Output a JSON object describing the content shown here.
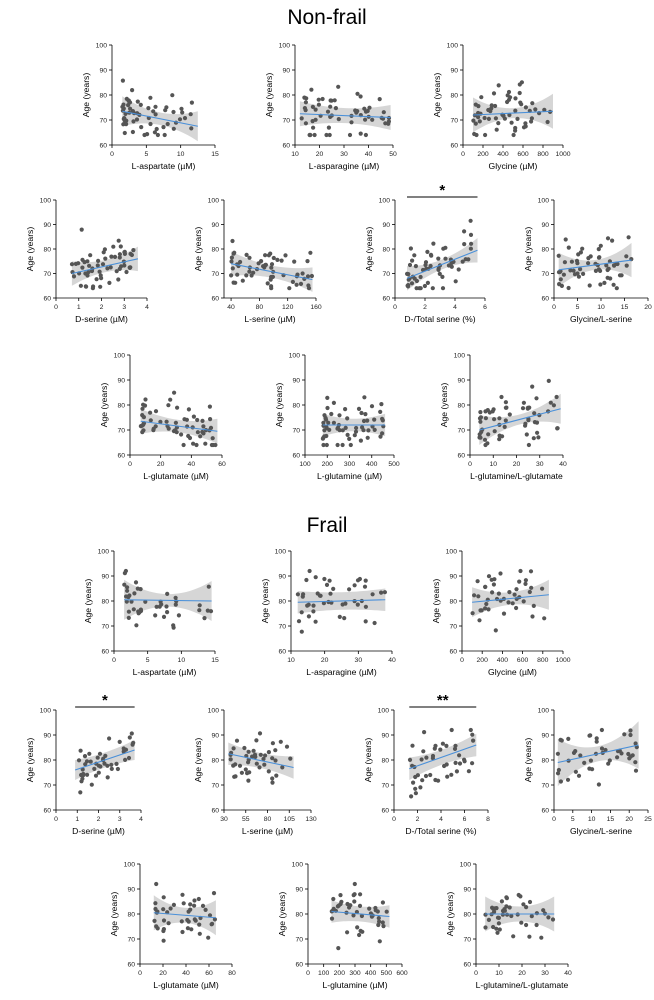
{
  "figure": {
    "groups": [
      {
        "id": "nonfrail",
        "title": "Non-frail"
      },
      {
        "id": "frail",
        "title": "Frail"
      }
    ],
    "y_label": "Age (years)"
  },
  "chart_data": [
    {
      "group": "nonfrail",
      "type": "scatter",
      "xlabel": "L-aspartate (µM)",
      "ylabel": "Age (years)",
      "xlim": [
        0,
        15
      ],
      "xticks": [
        0,
        5,
        10,
        15
      ],
      "ylim": [
        60,
        100
      ],
      "yticks": [
        60,
        70,
        80,
        90,
        100
      ],
      "x_range": [
        1.5,
        12.5
      ],
      "fit": {
        "y_start": 73.5,
        "y_end": 67.5
      },
      "ci_start": 2.5,
      "ci_end": 6,
      "significance": "",
      "points": 60
    },
    {
      "group": "nonfrail",
      "type": "scatter",
      "xlabel": "L-asparagine (µM)",
      "ylabel": "Age (years)",
      "xlim": [
        10,
        50
      ],
      "xticks": [
        10,
        20,
        30,
        40,
        50
      ],
      "ylim": [
        60,
        100
      ],
      "yticks": [
        60,
        70,
        80,
        90,
        100
      ],
      "x_range": [
        12,
        49
      ],
      "fit": {
        "y_start": 72.5,
        "y_end": 71
      },
      "ci_start": 3,
      "ci_end": 5,
      "significance": "",
      "points": 60
    },
    {
      "group": "nonfrail",
      "type": "scatter",
      "xlabel": "Glycine (µM)",
      "ylabel": "Age (years)",
      "xlim": [
        0,
        1000
      ],
      "xticks": [
        0,
        200,
        400,
        600,
        800,
        1000
      ],
      "ylim": [
        60,
        100
      ],
      "yticks": [
        60,
        70,
        80,
        90,
        100
      ],
      "x_range": [
        100,
        900
      ],
      "fit": {
        "y_start": 72,
        "y_end": 73.5
      },
      "ci_start": 2,
      "ci_end": 7,
      "significance": "",
      "points": 60
    },
    {
      "group": "nonfrail",
      "type": "scatter",
      "xlabel": "D-serine (µM)",
      "ylabel": "Age (years)",
      "xlim": [
        0,
        4
      ],
      "xticks": [
        0,
        1,
        2,
        3,
        4
      ],
      "ylim": [
        60,
        100
      ],
      "yticks": [
        60,
        70,
        80,
        90,
        100
      ],
      "x_range": [
        0.7,
        3.6
      ],
      "fit": {
        "y_start": 70,
        "y_end": 76
      },
      "ci_start": 2.5,
      "ci_end": 5,
      "significance": "",
      "points": 60
    },
    {
      "group": "nonfrail",
      "type": "scatter",
      "xlabel": "L-serine (µM)",
      "ylabel": "Age (years)",
      "xlim": [
        30,
        160
      ],
      "xticks": [
        40,
        80,
        120,
        160
      ],
      "ylim": [
        60,
        100
      ],
      "yticks": [
        60,
        70,
        80,
        90,
        100
      ],
      "x_range": [
        40,
        155
      ],
      "fit": {
        "y_start": 74,
        "y_end": 67.5
      },
      "ci_start": 2.5,
      "ci_end": 5,
      "significance": "",
      "points": 60
    },
    {
      "group": "nonfrail",
      "type": "scatter",
      "xlabel": "D-/Total serine (%)",
      "ylabel": "Age (years)",
      "xlim": [
        0,
        6
      ],
      "xticks": [
        0,
        2,
        4,
        6
      ],
      "ylim": [
        60,
        100
      ],
      "yticks": [
        60,
        70,
        80,
        90,
        100
      ],
      "x_range": [
        0.8,
        5.5
      ],
      "fit": {
        "y_start": 68,
        "y_end": 79.5
      },
      "ci_start": 2,
      "ci_end": 5,
      "significance": "*",
      "points": 60
    },
    {
      "group": "nonfrail",
      "type": "scatter",
      "xlabel": "Glycine/L-serine",
      "ylabel": "Age (years)",
      "xlim": [
        0,
        20
      ],
      "xticks": [
        0,
        5,
        10,
        15,
        20
      ],
      "ylim": [
        60,
        100
      ],
      "yticks": [
        60,
        70,
        80,
        90,
        100
      ],
      "x_range": [
        1,
        16.5
      ],
      "fit": {
        "y_start": 71.5,
        "y_end": 75.5
      },
      "ci_start": 2,
      "ci_end": 7,
      "significance": "",
      "points": 60
    },
    {
      "group": "nonfrail",
      "type": "scatter",
      "xlabel": "L-glutamate (µM)",
      "ylabel": "Age (years)",
      "xlim": [
        0,
        60
      ],
      "xticks": [
        0,
        20,
        40,
        60
      ],
      "ylim": [
        60,
        100
      ],
      "yticks": [
        60,
        70,
        80,
        90,
        100
      ],
      "x_range": [
        7,
        57
      ],
      "fit": {
        "y_start": 73.5,
        "y_end": 69.5
      },
      "ci_start": 2.5,
      "ci_end": 5,
      "significance": "",
      "points": 60
    },
    {
      "group": "nonfrail",
      "type": "scatter",
      "xlabel": "L-glutamine (µM)",
      "ylabel": "Age (years)",
      "xlim": [
        100,
        500
      ],
      "xticks": [
        100,
        200,
        300,
        400,
        500
      ],
      "ylim": [
        60,
        100
      ],
      "yticks": [
        60,
        70,
        80,
        90,
        100
      ],
      "x_range": [
        180,
        460
      ],
      "fit": {
        "y_start": 72,
        "y_end": 72
      },
      "ci_start": 2.5,
      "ci_end": 4.5,
      "significance": "",
      "points": 60
    },
    {
      "group": "nonfrail",
      "type": "scatter",
      "xlabel": "L-glutamine/L-glutamate",
      "ylabel": "Age (years)",
      "xlim": [
        0,
        40
      ],
      "xticks": [
        0,
        10,
        20,
        30,
        40
      ],
      "ylim": [
        60,
        100
      ],
      "yticks": [
        60,
        70,
        80,
        90,
        100
      ],
      "x_range": [
        4,
        39
      ],
      "fit": {
        "y_start": 70,
        "y_end": 78.5
      },
      "ci_start": 2,
      "ci_end": 6,
      "significance": "",
      "points": 60
    },
    {
      "group": "frail",
      "type": "scatter",
      "xlabel": "L-aspartate (µM)",
      "ylabel": "Age (years)",
      "xlim": [
        0,
        15
      ],
      "xticks": [
        0,
        5,
        10,
        15
      ],
      "ylim": [
        60,
        100
      ],
      "yticks": [
        60,
        70,
        80,
        90,
        100
      ],
      "x_range": [
        1.5,
        14.5
      ],
      "fit": {
        "y_start": 80.5,
        "y_end": 80
      },
      "ci_start": 2.5,
      "ci_end": 8,
      "significance": "",
      "points": 45
    },
    {
      "group": "frail",
      "type": "scatter",
      "xlabel": "L-asparagine (µM)",
      "ylabel": "Age (years)",
      "xlim": [
        10,
        40
      ],
      "xticks": [
        10,
        20,
        30,
        40
      ],
      "ylim": [
        60,
        100
      ],
      "yticks": [
        60,
        70,
        80,
        90,
        100
      ],
      "x_range": [
        12,
        38
      ],
      "fit": {
        "y_start": 79.5,
        "y_end": 80.5
      },
      "ci_start": 3.5,
      "ci_end": 4.5,
      "significance": "",
      "points": 45
    },
    {
      "group": "frail",
      "type": "scatter",
      "xlabel": "Glycine (µM)",
      "ylabel": "Age (years)",
      "xlim": [
        0,
        1000
      ],
      "xticks": [
        0,
        200,
        400,
        600,
        800,
        1000
      ],
      "ylim": [
        60,
        100
      ],
      "yticks": [
        60,
        70,
        80,
        90,
        100
      ],
      "x_range": [
        100,
        860
      ],
      "fit": {
        "y_start": 79.5,
        "y_end": 82.5
      },
      "ci_start": 2.5,
      "ci_end": 6,
      "significance": "",
      "points": 45
    },
    {
      "group": "frail",
      "type": "scatter",
      "xlabel": "D-serine (µM)",
      "ylabel": "Age (years)",
      "xlim": [
        0,
        4
      ],
      "xticks": [
        0,
        1,
        2,
        3,
        4
      ],
      "ylim": [
        60,
        100
      ],
      "yticks": [
        60,
        70,
        80,
        90,
        100
      ],
      "x_range": [
        0.9,
        3.7
      ],
      "fit": {
        "y_start": 76,
        "y_end": 84
      },
      "ci_start": 3,
      "ci_end": 4,
      "significance": "*",
      "points": 45
    },
    {
      "group": "frail",
      "type": "scatter",
      "xlabel": "L-serine (µM)",
      "ylabel": "Age (years)",
      "xlim": [
        30,
        130
      ],
      "xticks": [
        30,
        55,
        80,
        105,
        130
      ],
      "ylim": [
        60,
        100
      ],
      "yticks": [
        60,
        70,
        80,
        90,
        100
      ],
      "x_range": [
        35,
        110
      ],
      "fit": {
        "y_start": 82.5,
        "y_end": 77
      },
      "ci_start": 3,
      "ci_end": 4.5,
      "significance": "",
      "points": 45
    },
    {
      "group": "frail",
      "type": "scatter",
      "xlabel": "D-/Total serine (%)",
      "ylabel": "Age (years)",
      "xlim": [
        0,
        8
      ],
      "xticks": [
        0,
        2,
        4,
        6,
        8
      ],
      "ylim": [
        60,
        100
      ],
      "yticks": [
        60,
        70,
        80,
        90,
        100
      ],
      "x_range": [
        1.3,
        7
      ],
      "fit": {
        "y_start": 76.5,
        "y_end": 86
      },
      "ci_start": 3,
      "ci_end": 4.5,
      "significance": "**",
      "points": 45
    },
    {
      "group": "frail",
      "type": "scatter",
      "xlabel": "Glycine/L-serine",
      "ylabel": "Age (years)",
      "xlim": [
        0,
        25
      ],
      "xticks": [
        0,
        5,
        10,
        15,
        20,
        25
      ],
      "ylim": [
        60,
        100
      ],
      "yticks": [
        60,
        70,
        80,
        90,
        100
      ],
      "x_range": [
        1,
        22.5
      ],
      "fit": {
        "y_start": 79,
        "y_end": 86
      },
      "ci_start": 3,
      "ci_end": 9.5,
      "significance": "",
      "points": 45
    },
    {
      "group": "frail",
      "type": "scatter",
      "xlabel": "L-glutamate (µM)",
      "ylabel": "Age (years)",
      "xlim": [
        0,
        80
      ],
      "xticks": [
        0,
        20,
        40,
        60,
        80
      ],
      "ylim": [
        60,
        100
      ],
      "yticks": [
        60,
        70,
        80,
        90,
        100
      ],
      "x_range": [
        12,
        66
      ],
      "fit": {
        "y_start": 80.5,
        "y_end": 78.5
      },
      "ci_start": 3,
      "ci_end": 7,
      "significance": "",
      "points": 45
    },
    {
      "group": "frail",
      "type": "scatter",
      "xlabel": "L-glutamine (µM)",
      "ylabel": "Age (years)",
      "xlim": [
        0,
        600
      ],
      "xticks": [
        0,
        100,
        200,
        300,
        400,
        500,
        600
      ],
      "ylim": [
        60,
        100
      ],
      "yticks": [
        60,
        70,
        80,
        90,
        100
      ],
      "x_range": [
        150,
        520
      ],
      "fit": {
        "y_start": 81,
        "y_end": 79
      },
      "ci_start": 3,
      "ci_end": 4.5,
      "significance": "",
      "points": 45
    },
    {
      "group": "frail",
      "type": "scatter",
      "xlabel": "L-glutamine/L-glutamate",
      "ylabel": "Age (years)",
      "xlim": [
        0,
        40
      ],
      "xticks": [
        0,
        10,
        20,
        30,
        40
      ],
      "ylim": [
        60,
        100
      ],
      "yticks": [
        60,
        70,
        80,
        90,
        100
      ],
      "x_range": [
        4,
        34
      ],
      "fit": {
        "y_start": 80,
        "y_end": 80
      },
      "ci_start": 3,
      "ci_end": 7,
      "significance": "",
      "points": 45
    }
  ]
}
